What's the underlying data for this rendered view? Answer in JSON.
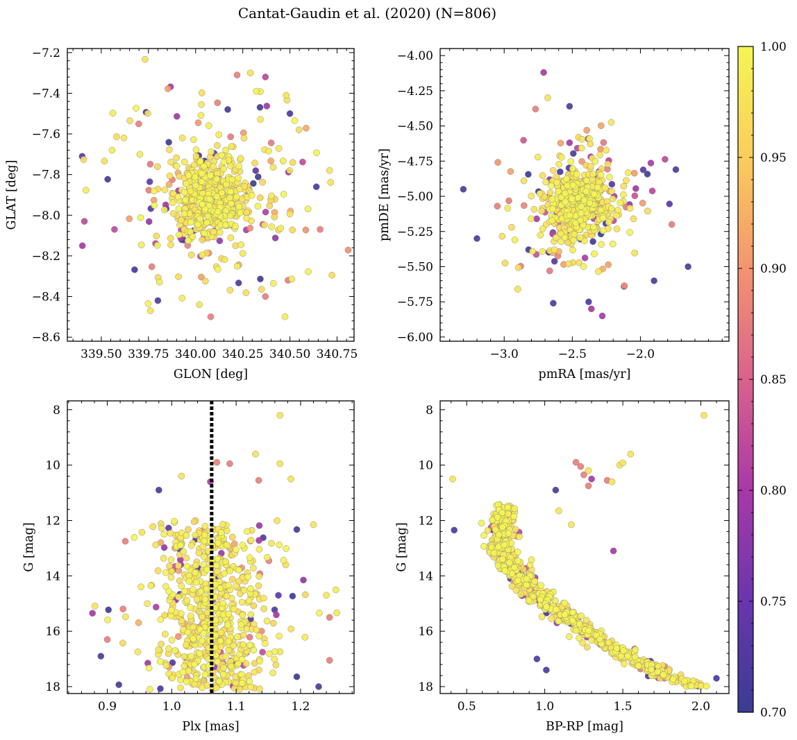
{
  "figure": {
    "title": "Cantat-Gaudin et al. (2020) (N=806)",
    "n_members": 806
  },
  "colors": {
    "colormap": "plasma",
    "cmap_stops": [
      "#3b3c93",
      "#6a36ad",
      "#a838a8",
      "#d9628c",
      "#f39470",
      "#fbcc5c",
      "#f4f656"
    ],
    "point_edge": "#777777",
    "reference_line": "#000000"
  },
  "chart_data": [
    {
      "id": "sky",
      "type": "scatter",
      "title": "",
      "xlabel": "GLON [deg]",
      "ylabel": "GLAT [deg]",
      "xlim": [
        339.32,
        340.84
      ],
      "ylim": [
        -8.62,
        -7.18
      ],
      "xticks": [
        339.5,
        339.75,
        340.0,
        340.25,
        340.5,
        340.75
      ],
      "xticklabels": [
        "339.50",
        "339.75",
        "340.00",
        "340.25",
        "340.50",
        "340.75"
      ],
      "yticks": [
        -8.6,
        -8.4,
        -8.2,
        -8.0,
        -7.8,
        -7.6,
        -7.4,
        -7.2
      ],
      "yticklabels": [
        "−8.6",
        "−8.4",
        "−8.2",
        "−8.0",
        "−7.8",
        "−7.6",
        "−7.4",
        "−7.2"
      ],
      "cloud": {
        "x_center": 340.08,
        "y_center": -7.92,
        "x_sd": 0.22,
        "y_sd": 0.22,
        "core_sd_frac": 0.45
      },
      "points": [
        {
          "x": 340.22,
          "y": -7.31,
          "c": 0.88
        },
        {
          "x": 340.29,
          "y": -7.3,
          "c": 0.98
        },
        {
          "x": 340.37,
          "y": -7.32,
          "c": 0.82
        },
        {
          "x": 340.48,
          "y": -7.41,
          "c": 0.98
        },
        {
          "x": 340.17,
          "y": -7.48,
          "c": 0.71
        },
        {
          "x": 340.5,
          "y": -7.5,
          "c": 0.72
        },
        {
          "x": 339.62,
          "y": -7.62,
          "c": 0.98
        },
        {
          "x": 339.4,
          "y": -8.15,
          "c": 0.8
        },
        {
          "x": 339.41,
          "y": -8.03,
          "c": 0.82
        },
        {
          "x": 340.64,
          "y": -7.86,
          "c": 0.72
        },
        {
          "x": 340.71,
          "y": -7.78,
          "c": 0.98
        },
        {
          "x": 340.66,
          "y": -8.07,
          "c": 0.88
        },
        {
          "x": 340.08,
          "y": -8.5,
          "c": 0.88
        },
        {
          "x": 340.02,
          "y": -8.44,
          "c": 0.98
        },
        {
          "x": 339.8,
          "y": -8.42,
          "c": 0.72
        },
        {
          "x": 339.76,
          "y": -8.47,
          "c": 0.98
        },
        {
          "x": 340.49,
          "y": -8.32,
          "c": 0.88
        },
        {
          "x": 340.37,
          "y": -8.4,
          "c": 0.88
        },
        {
          "x": 339.93,
          "y": -7.62,
          "c": 0.98
        },
        {
          "x": 339.57,
          "y": -8.07,
          "c": 0.82
        }
      ]
    },
    {
      "id": "pm",
      "type": "scatter",
      "title": "",
      "xlabel": "pmRA [mas/yr]",
      "ylabel": "pmDE [mas/yr]",
      "xlim": [
        -3.47,
        -1.35
      ],
      "ylim": [
        -6.03,
        -3.95
      ],
      "xticks": [
        -3.0,
        -2.5,
        -2.0
      ],
      "xticklabels": [
        "−3.0",
        "−2.5",
        "−2.0"
      ],
      "yticks": [
        -6.0,
        -5.75,
        -5.5,
        -5.25,
        -5.0,
        -4.75,
        -4.5,
        -4.25,
        -4.0
      ],
      "yticklabels": [
        "−6.00",
        "−5.75",
        "−5.50",
        "−5.25",
        "−5.00",
        "−4.75",
        "−4.50",
        "−4.25",
        "−4.00"
      ],
      "cloud": {
        "x_center": -2.45,
        "y_center": -5.05,
        "x_sd": 0.2,
        "y_sd": 0.2,
        "core_sd_frac": 0.5
      },
      "points": [
        {
          "x": -2.71,
          "y": -4.12,
          "c": 0.8
        },
        {
          "x": -2.68,
          "y": -4.3,
          "c": 0.98
        },
        {
          "x": -2.52,
          "y": -4.36,
          "c": 0.72
        },
        {
          "x": -3.3,
          "y": -4.95,
          "c": 0.72
        },
        {
          "x": -3.2,
          "y": -5.3,
          "c": 0.72
        },
        {
          "x": -1.65,
          "y": -5.5,
          "c": 0.72
        },
        {
          "x": -1.74,
          "y": -4.81,
          "c": 0.72
        },
        {
          "x": -2.77,
          "y": -4.38,
          "c": 0.88
        },
        {
          "x": -2.28,
          "y": -5.85,
          "c": 0.8
        },
        {
          "x": -2.36,
          "y": -5.8,
          "c": 0.8
        },
        {
          "x": -2.38,
          "y": -5.75,
          "c": 0.72
        },
        {
          "x": -2.64,
          "y": -5.76,
          "c": 0.72
        },
        {
          "x": -2.9,
          "y": -5.66,
          "c": 0.98
        },
        {
          "x": -2.12,
          "y": -5.64,
          "c": 0.72
        },
        {
          "x": -3.05,
          "y": -5.07,
          "c": 0.88
        },
        {
          "x": -2.52,
          "y": -4.62,
          "c": 0.8
        },
        {
          "x": -1.9,
          "y": -5.6,
          "c": 0.72
        },
        {
          "x": -1.77,
          "y": -5.2,
          "c": 0.88
        }
      ]
    },
    {
      "id": "plx",
      "type": "scatter",
      "title": "",
      "xlabel": "Plx [mas]",
      "ylabel": "G [mag]",
      "xlim": [
        0.838,
        1.283
      ],
      "ylim": [
        18.25,
        7.68
      ],
      "y_inverted": true,
      "xticks": [
        0.9,
        1.0,
        1.1,
        1.2
      ],
      "xticklabels": [
        "0.9",
        "1.0",
        "1.1",
        "1.2"
      ],
      "yticks": [
        8,
        10,
        12,
        14,
        16,
        18
      ],
      "yticklabels": [
        "8",
        "10",
        "12",
        "14",
        "16",
        "18"
      ],
      "reference_line": {
        "x": 1.062,
        "style": "dotted"
      },
      "cloud": {
        "x_center": 1.06,
        "y_center": 14.2,
        "x_sd": 0.06,
        "y_sd": 1.6,
        "core_sd_frac": 0.7,
        "g_min": 12.0,
        "g_max": 18.1
      },
      "points": [
        {
          "x": 1.168,
          "y": 8.2,
          "c": 0.98
        },
        {
          "x": 1.168,
          "y": 9.95,
          "c": 0.98
        },
        {
          "x": 1.13,
          "y": 9.6,
          "c": 0.98
        },
        {
          "x": 1.07,
          "y": 9.9,
          "c": 0.88
        },
        {
          "x": 1.09,
          "y": 9.95,
          "c": 0.88
        },
        {
          "x": 1.015,
          "y": 10.4,
          "c": 0.98
        },
        {
          "x": 0.98,
          "y": 10.9,
          "c": 0.72
        },
        {
          "x": 1.185,
          "y": 10.5,
          "c": 0.98
        },
        {
          "x": 1.135,
          "y": 10.55,
          "c": 0.88
        },
        {
          "x": 1.06,
          "y": 10.6,
          "c": 0.8
        },
        {
          "x": 0.877,
          "y": 15.35,
          "c": 0.8
        },
        {
          "x": 1.245,
          "y": 15.5,
          "c": 0.88
        },
        {
          "x": 1.24,
          "y": 14.7,
          "c": 0.98
        },
        {
          "x": 1.22,
          "y": 12.15,
          "c": 0.98
        },
        {
          "x": 1.245,
          "y": 17.05,
          "c": 0.88
        },
        {
          "x": 1.228,
          "y": 18.0,
          "c": 0.72
        },
        {
          "x": 0.89,
          "y": 16.9,
          "c": 0.72
        },
        {
          "x": 0.9,
          "y": 16.3,
          "c": 0.88
        },
        {
          "x": 0.928,
          "y": 12.75,
          "c": 0.88
        }
      ]
    },
    {
      "id": "cmd",
      "type": "scatter",
      "title": "",
      "xlabel": "BP-RP [mag]",
      "ylabel": "G [mag]",
      "xlim": [
        0.33,
        2.18
      ],
      "ylim": [
        18.25,
        7.68
      ],
      "y_inverted": true,
      "xticks": [
        0.5,
        1.0,
        1.5,
        2.0
      ],
      "xticklabels": [
        "0.5",
        "1.0",
        "1.5",
        "2.0"
      ],
      "yticks": [
        8,
        10,
        12,
        14,
        16,
        18
      ],
      "yticklabels": [
        "8",
        "10",
        "12",
        "14",
        "16",
        "18"
      ],
      "sequence": {
        "ridge_g": [
          11.4,
          12.3,
          13.0,
          14.0,
          15.0,
          16.0,
          17.0,
          17.7,
          18.0
        ],
        "ridge_bp_rp": [
          0.74,
          0.72,
          0.73,
          0.83,
          1.01,
          1.27,
          1.56,
          1.82,
          2.02
        ],
        "spread_bp_rp": 0.05
      },
      "points": [
        {
          "x": 2.02,
          "y": 8.2,
          "c": 0.98
        },
        {
          "x": 0.41,
          "y": 10.5,
          "c": 0.98
        },
        {
          "x": 0.42,
          "y": 12.35,
          "c": 0.72
        },
        {
          "x": 1.07,
          "y": 10.9,
          "c": 0.72
        },
        {
          "x": 1.55,
          "y": 9.6,
          "c": 0.98
        },
        {
          "x": 1.48,
          "y": 10.0,
          "c": 0.98
        },
        {
          "x": 1.5,
          "y": 9.92,
          "c": 0.98
        },
        {
          "x": 1.2,
          "y": 9.9,
          "c": 0.88
        },
        {
          "x": 1.23,
          "y": 10.05,
          "c": 0.88
        },
        {
          "x": 1.25,
          "y": 10.35,
          "c": 0.88
        },
        {
          "x": 1.28,
          "y": 10.75,
          "c": 0.88
        },
        {
          "x": 1.3,
          "y": 10.5,
          "c": 0.8
        },
        {
          "x": 1.28,
          "y": 10.2,
          "c": 0.98
        },
        {
          "x": 1.4,
          "y": 10.55,
          "c": 0.88
        },
        {
          "x": 1.43,
          "y": 10.6,
          "c": 0.98
        },
        {
          "x": 1.44,
          "y": 13.1,
          "c": 0.8
        },
        {
          "x": 0.95,
          "y": 17.0,
          "c": 0.72
        },
        {
          "x": 1.01,
          "y": 17.4,
          "c": 0.72
        },
        {
          "x": 1.09,
          "y": 11.65,
          "c": 0.98
        },
        {
          "x": 1.17,
          "y": 12.15,
          "c": 0.98
        },
        {
          "x": 0.78,
          "y": 14.1,
          "c": 0.72
        },
        {
          "x": 0.7,
          "y": 13.0,
          "c": 0.88
        },
        {
          "x": 2.1,
          "y": 17.7,
          "c": 0.72
        }
      ]
    }
  ],
  "colorbar": {
    "vmin": 0.7,
    "vmax": 1.0,
    "ticks": [
      0.7,
      0.75,
      0.8,
      0.85,
      0.9,
      0.95,
      1.0
    ],
    "ticklabels": [
      "0.70",
      "0.75",
      "0.80",
      "0.85",
      "0.90",
      "0.95",
      "1.00"
    ]
  }
}
